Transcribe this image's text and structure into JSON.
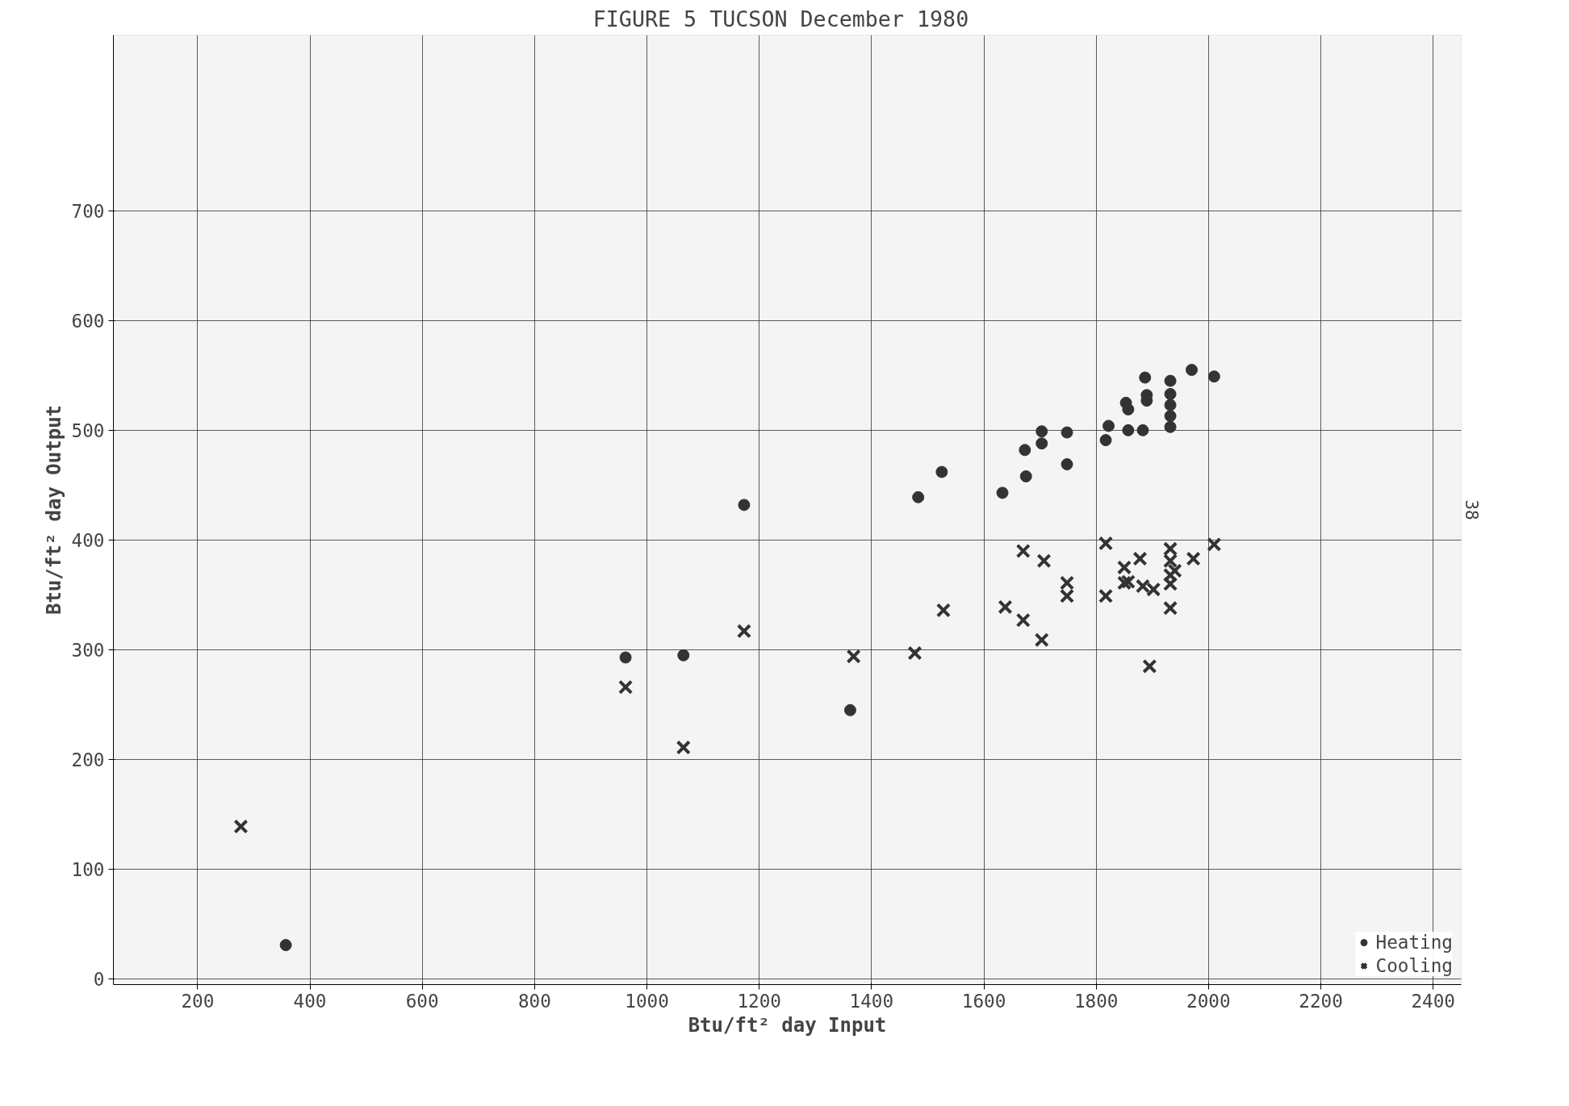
{
  "chart_data": {
    "type": "scatter",
    "title": "FIGURE 5  TUCSON December 1980",
    "xlabel": "Btu/ft² day Input",
    "ylabel": "Btu/ft² day Output",
    "xlim": [
      50,
      2450
    ],
    "ylim": [
      -5,
      860
    ],
    "xticks": [
      200,
      400,
      600,
      800,
      1000,
      1200,
      1400,
      1600,
      1800,
      2000,
      2200,
      2400
    ],
    "yticks": [
      0,
      100,
      200,
      300,
      400,
      500,
      600,
      700
    ],
    "grid": true,
    "legend": "bottom right",
    "annotations": [
      "38"
    ],
    "series": [
      {
        "name": "Heating",
        "color": "#333333",
        "marker": "circle",
        "x": [
          357,
          962,
          1065,
          1173,
          1362,
          1483,
          1525,
          1633,
          1673,
          1675,
          1703,
          1703,
          1748,
          1748,
          1817,
          1822,
          1853,
          1857,
          1857,
          1883,
          1887,
          1890,
          1890,
          1932,
          1932,
          1932,
          1932,
          1932,
          1970,
          2010
        ],
        "values": [
          31,
          293,
          295,
          432,
          245,
          439,
          462,
          443,
          482,
          458,
          499,
          488,
          498,
          469,
          491,
          504,
          525,
          500,
          519,
          500,
          548,
          532,
          527,
          545,
          533,
          523,
          513,
          503,
          555,
          549
        ]
      },
      {
        "name": "Cooling",
        "color": "#333333",
        "marker": "cross",
        "x": [
          277,
          962,
          1065,
          1173,
          1368,
          1477,
          1528,
          1638,
          1670,
          1670,
          1707,
          1703,
          1748,
          1748,
          1817,
          1817,
          1850,
          1850,
          1857,
          1878,
          1883,
          1902,
          1895,
          1932,
          1932,
          1932,
          1932,
          1932,
          1940,
          1973,
          2010
        ],
        "values": [
          139,
          266,
          211,
          317,
          294,
          297,
          336,
          339,
          390,
          327,
          381,
          309,
          361,
          349,
          397,
          349,
          375,
          361,
          362,
          383,
          358,
          355,
          285,
          392,
          381,
          368,
          360,
          338,
          372,
          383,
          396
        ]
      }
    ]
  }
}
